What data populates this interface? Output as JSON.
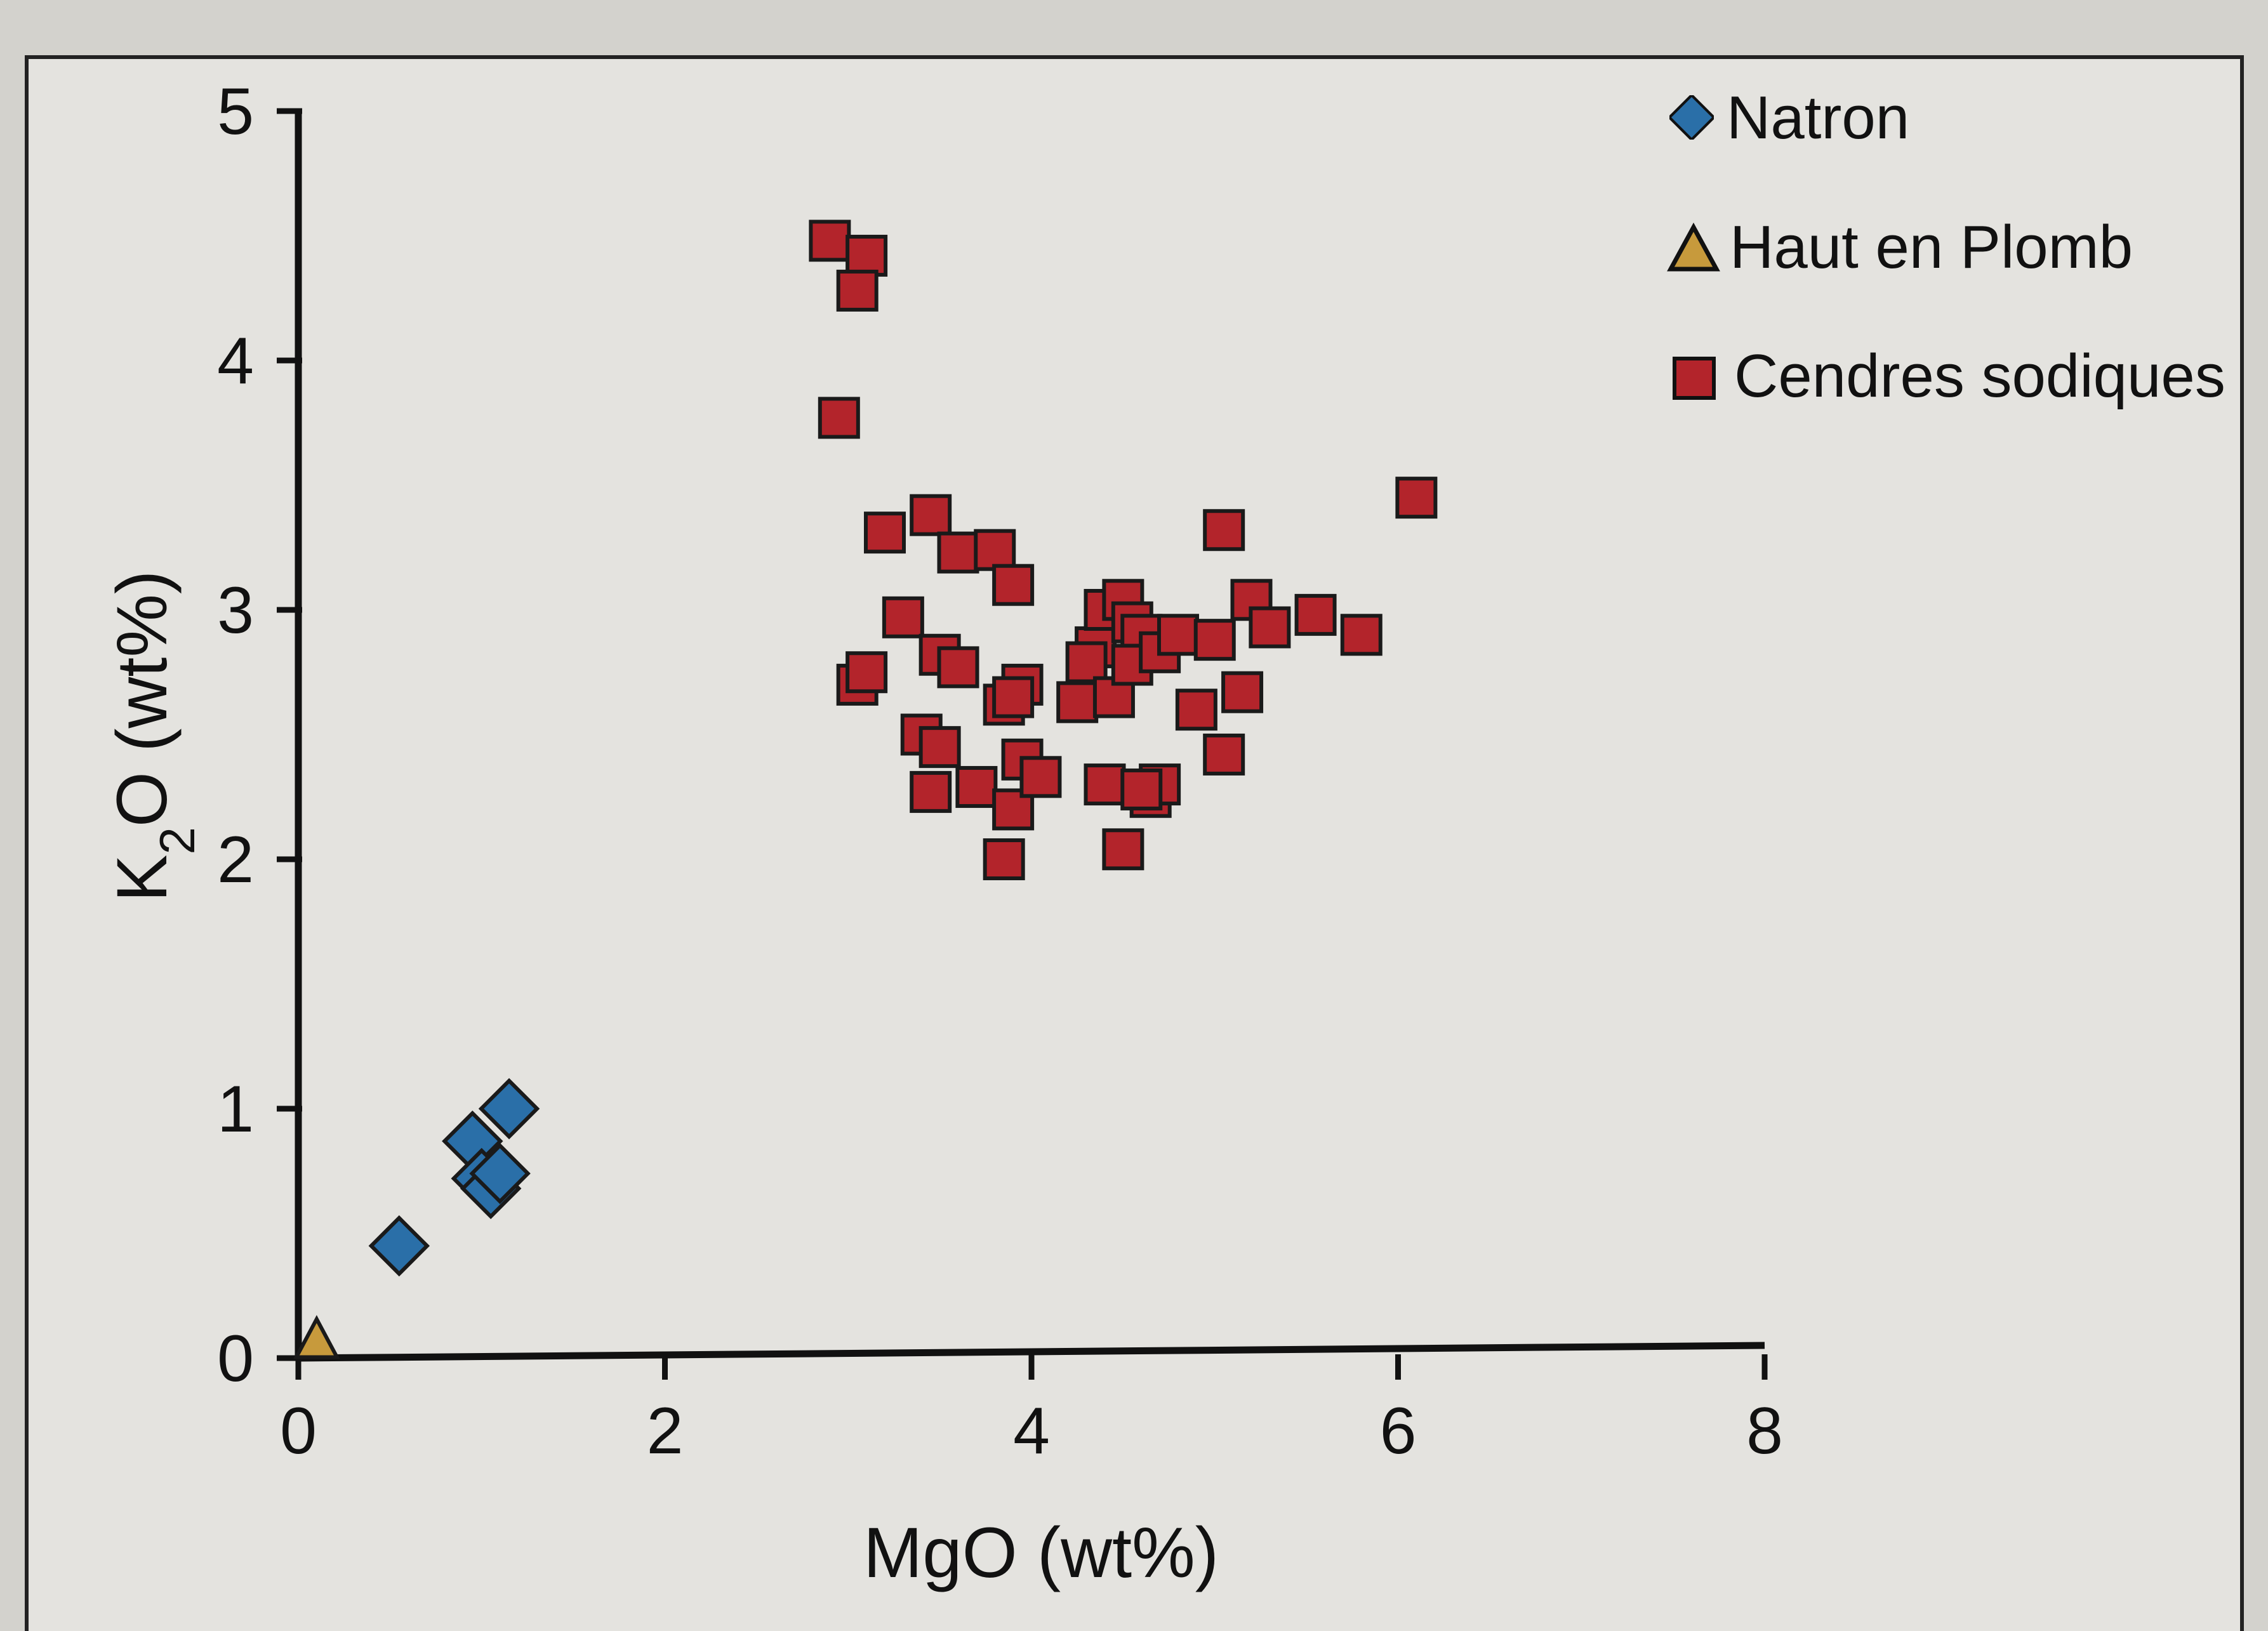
{
  "chart_data": {
    "type": "scatter",
    "xlabel": "MgO (wt%)",
    "ylabel": {
      "prefix": "K",
      "sub": "2",
      "suffix": "O (wt%)"
    },
    "xlim": [
      0,
      8
    ],
    "ylim": [
      0,
      5
    ],
    "x_ticks": [
      "0",
      "2",
      "4",
      "6",
      "8"
    ],
    "y_ticks": [
      "0",
      "1",
      "2",
      "3",
      "4",
      "5"
    ],
    "grid": false,
    "legend_position": "top-right",
    "series": [
      {
        "name": "Natron",
        "marker": "diamond",
        "color": "#2a6fa8",
        "points": [
          [
            0.55,
            0.45
          ],
          [
            0.95,
            0.87
          ],
          [
            1.15,
            1.0
          ],
          [
            1.0,
            0.72
          ],
          [
            1.05,
            0.68
          ],
          [
            1.1,
            0.74
          ]
        ]
      },
      {
        "name": "Haut en Plomb",
        "marker": "triangle",
        "color": "#c79a3c",
        "points": [
          [
            0.1,
            0.07
          ]
        ]
      },
      {
        "name": "Cendres sodiques",
        "marker": "square",
        "color": "#b3242b",
        "points": [
          [
            2.9,
            4.48
          ],
          [
            3.1,
            4.42
          ],
          [
            3.05,
            4.28
          ],
          [
            2.95,
            3.77
          ],
          [
            3.2,
            3.31
          ],
          [
            3.45,
            3.38
          ],
          [
            3.6,
            3.23
          ],
          [
            3.8,
            3.24
          ],
          [
            3.9,
            3.1
          ],
          [
            5.05,
            3.32
          ],
          [
            6.1,
            3.45
          ],
          [
            3.3,
            2.97
          ],
          [
            3.5,
            2.82
          ],
          [
            3.6,
            2.77
          ],
          [
            3.05,
            2.7
          ],
          [
            3.1,
            2.75
          ],
          [
            3.4,
            2.5
          ],
          [
            3.5,
            2.45
          ],
          [
            3.45,
            2.27
          ],
          [
            3.7,
            2.29
          ],
          [
            3.9,
            2.2
          ],
          [
            3.85,
            2.0
          ],
          [
            3.95,
            2.4
          ],
          [
            4.05,
            2.33
          ],
          [
            3.95,
            2.7
          ],
          [
            3.85,
            2.62
          ],
          [
            3.9,
            2.65
          ],
          [
            4.25,
            2.63
          ],
          [
            4.35,
            2.85
          ],
          [
            4.3,
            2.79
          ],
          [
            4.45,
            2.65
          ],
          [
            4.4,
            2.3
          ],
          [
            4.5,
            2.04
          ],
          [
            4.4,
            3.0
          ],
          [
            4.5,
            3.04
          ],
          [
            4.55,
            2.95
          ],
          [
            4.6,
            2.9
          ],
          [
            4.55,
            2.78
          ],
          [
            4.7,
            2.83
          ],
          [
            4.8,
            2.9
          ],
          [
            4.9,
            2.6
          ],
          [
            5.0,
            2.88
          ],
          [
            5.2,
            3.04
          ],
          [
            5.3,
            2.93
          ],
          [
            5.55,
            2.98
          ],
          [
            5.8,
            2.9
          ],
          [
            5.15,
            2.67
          ],
          [
            5.05,
            2.42
          ],
          [
            4.65,
            2.25
          ],
          [
            4.7,
            2.3
          ],
          [
            4.6,
            2.28
          ]
        ]
      }
    ]
  }
}
